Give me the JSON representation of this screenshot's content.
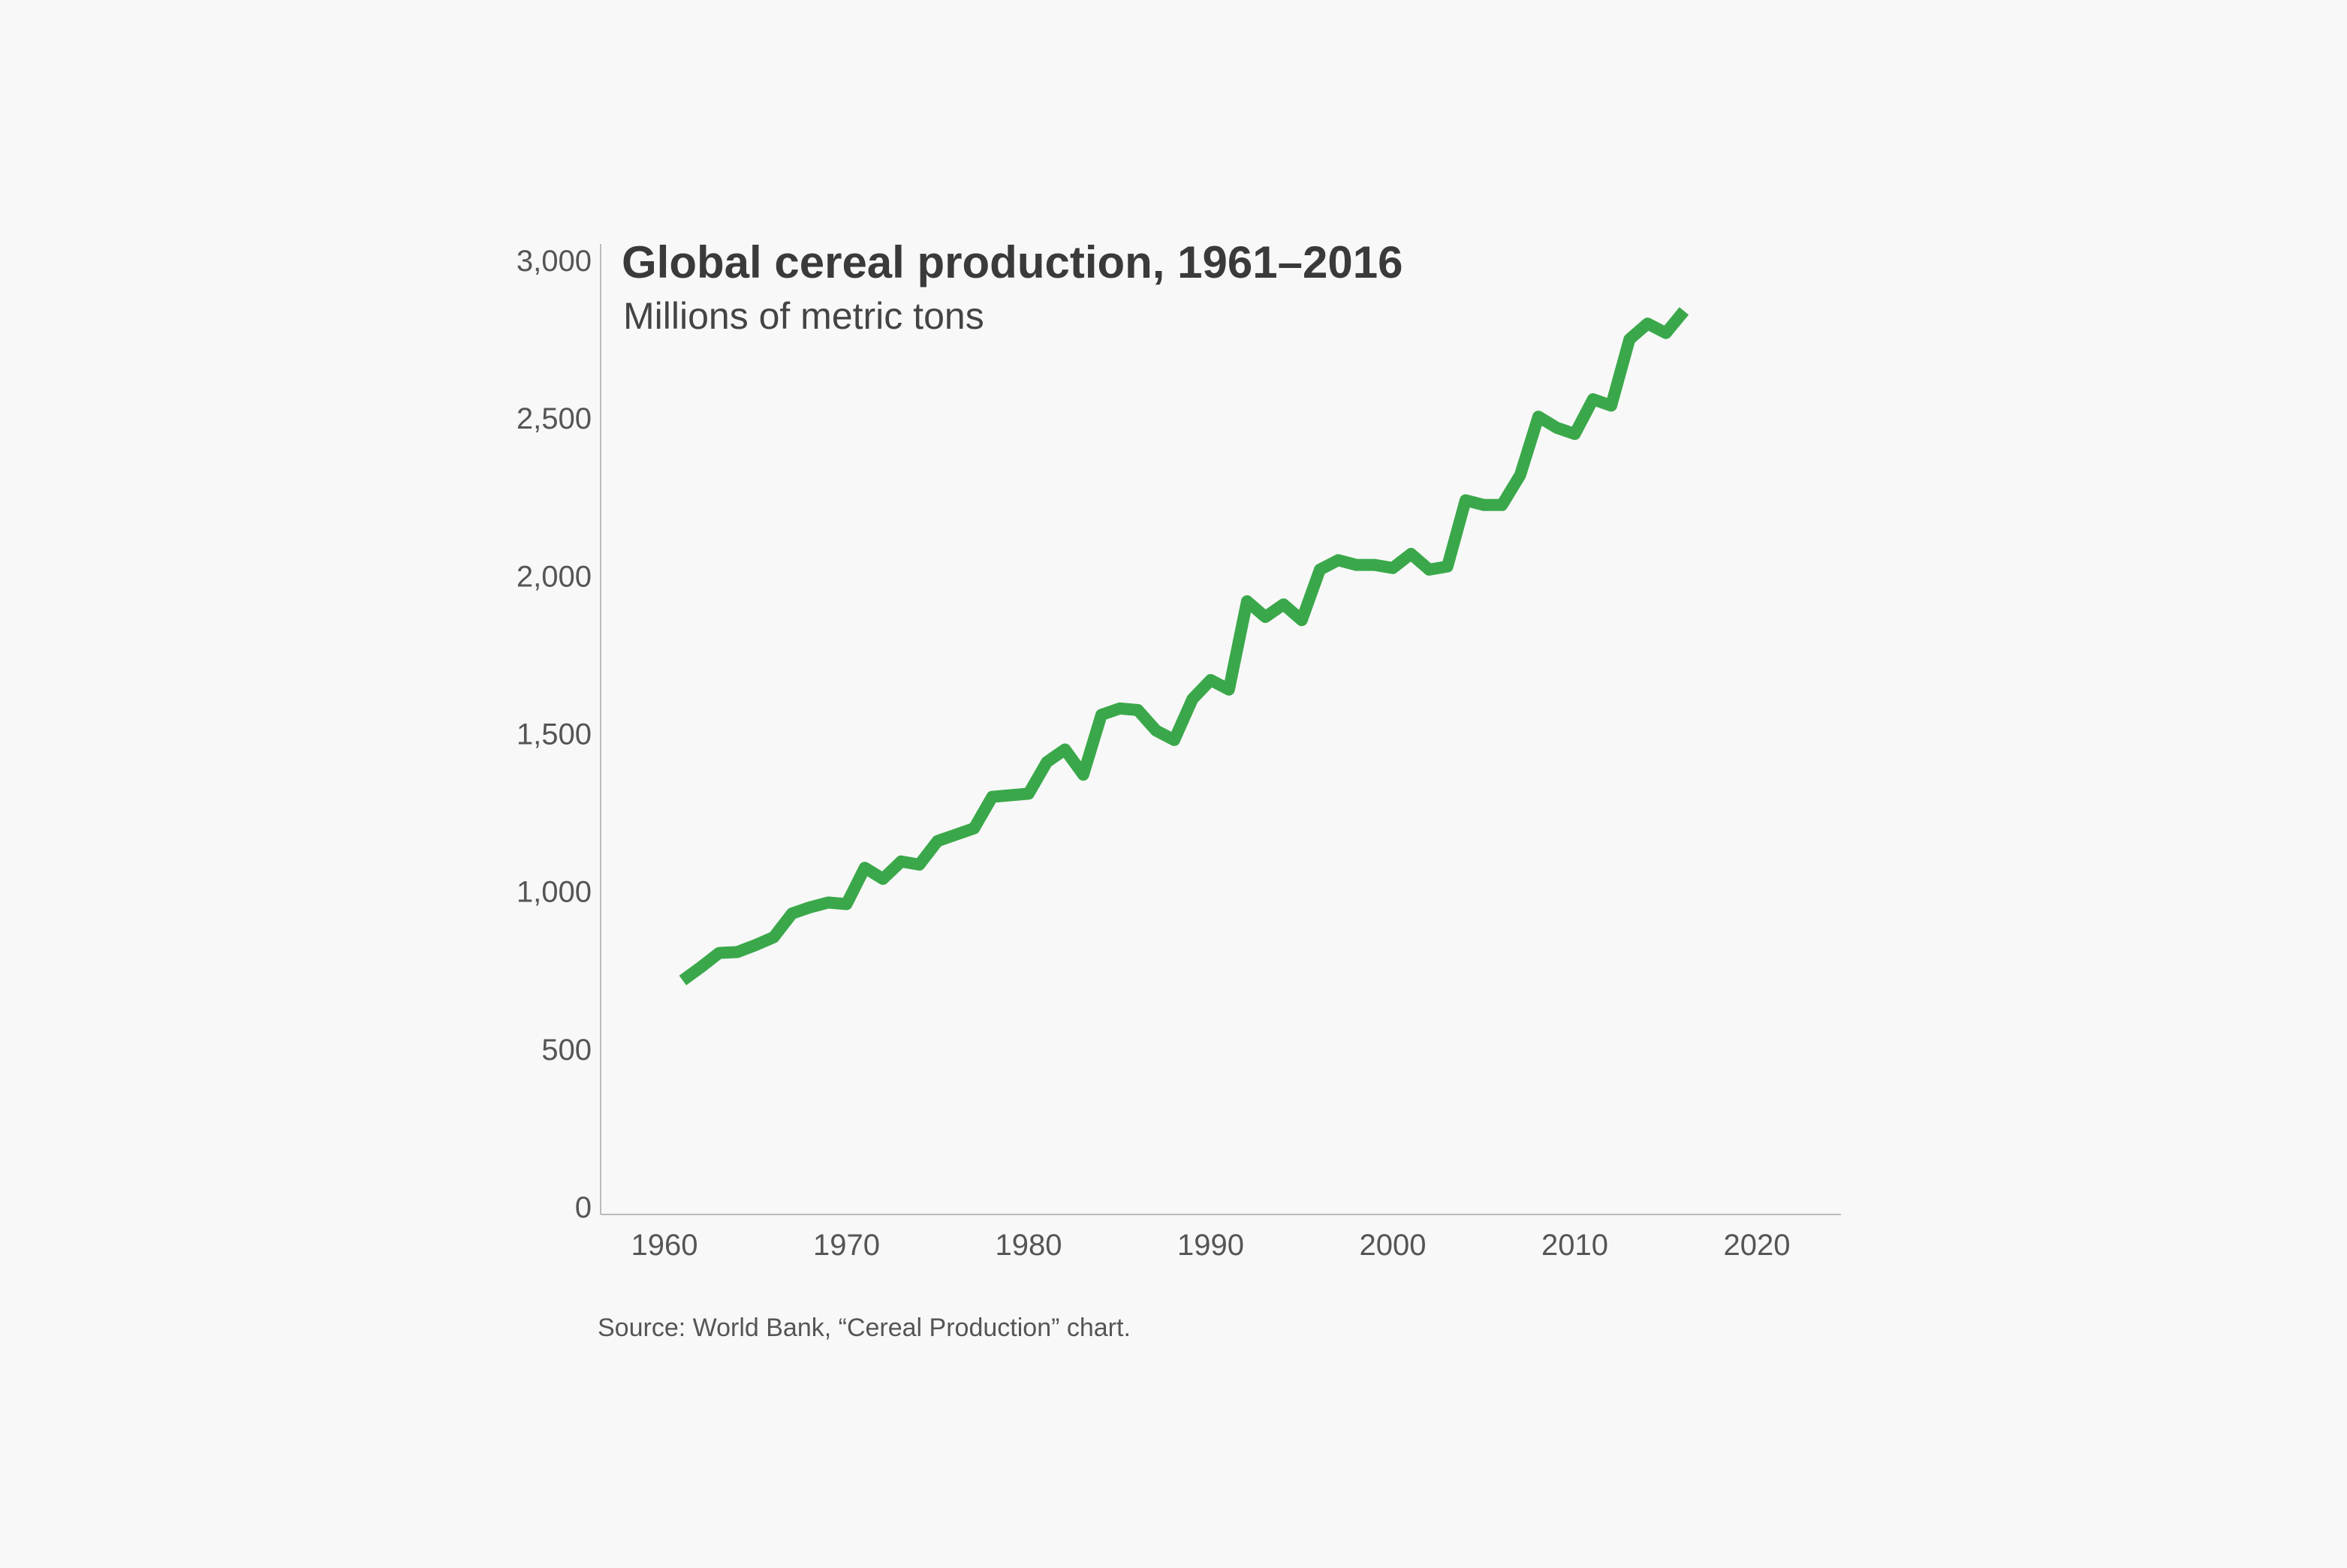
{
  "chart_data": {
    "type": "line",
    "title": "Global cereal production, 1961–2016",
    "subtitle": "Millions of metric tons",
    "source": "Source: World Bank, “Cereal Production” chart.",
    "xlabel": "",
    "ylabel": "",
    "xlim": [
      1957,
      2025
    ],
    "ylim": [
      0,
      3000
    ],
    "x_ticks": [
      1960,
      1970,
      1980,
      1990,
      2000,
      2010,
      2020
    ],
    "x_tick_labels": [
      "1960",
      "1970",
      "1980",
      "1990",
      "2000",
      "2010",
      "2020"
    ],
    "y_ticks": [
      0,
      500,
      1000,
      1500,
      2000,
      2500,
      3000
    ],
    "y_tick_labels": [
      "0",
      "500",
      "1,000",
      "1,500",
      "2,000",
      "2,500",
      "3,000"
    ],
    "grid": false,
    "legend": "none",
    "line_color": "#3aa84a",
    "series": [
      {
        "x": [
          1961,
          1962,
          1963,
          1964,
          1965,
          1966,
          1967,
          1968,
          1969,
          1970,
          1971,
          1972,
          1973,
          1974,
          1975,
          1976,
          1977,
          1978,
          1979,
          1980,
          1981,
          1982,
          1983,
          1984,
          1985,
          1986,
          1987,
          1988,
          1989,
          1990,
          1991,
          1992,
          1993,
          1994,
          1995,
          1996,
          1997,
          1998,
          1999,
          2000,
          2001,
          2002,
          2003,
          2004,
          2005,
          2006,
          2007,
          2008,
          2009,
          2010,
          2011,
          2012,
          2013,
          2014,
          2015,
          2016
        ],
        "values": [
          718,
          760,
          805,
          808,
          830,
          855,
          930,
          950,
          965,
          960,
          1075,
          1040,
          1095,
          1085,
          1160,
          1180,
          1200,
          1300,
          1305,
          1310,
          1410,
          1450,
          1370,
          1560,
          1580,
          1575,
          1510,
          1480,
          1610,
          1670,
          1640,
          1920,
          1870,
          1910,
          1860,
          2020,
          2050,
          2035,
          2035,
          2025,
          2070,
          2020,
          2030,
          2240,
          2225,
          2225,
          2320,
          2505,
          2470,
          2450,
          2560,
          2540,
          2750,
          2800,
          2770,
          2840
        ]
      }
    ]
  }
}
